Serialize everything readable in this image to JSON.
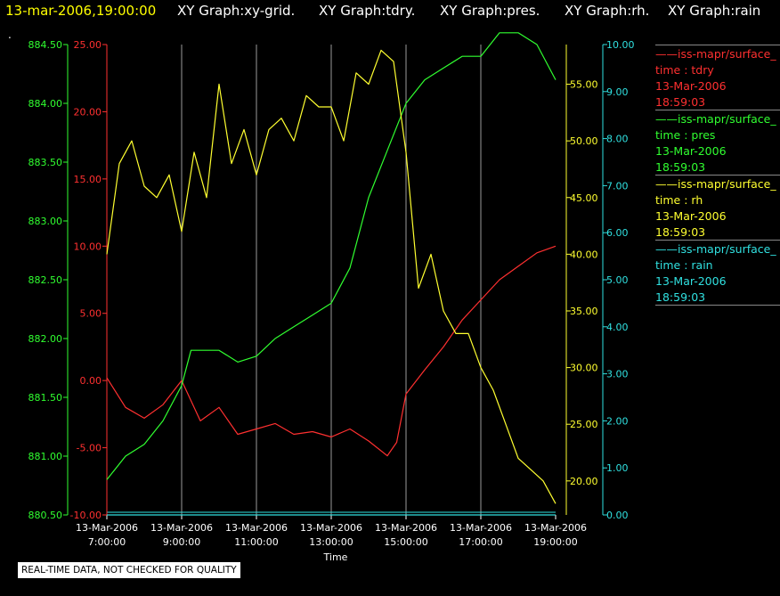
{
  "header": {
    "timestamp": "13-mar-2006,19:00:00",
    "graphs": [
      "XY Graph:xy-grid.",
      "XY Graph:tdry.",
      "XY Graph:pres.",
      "XY Graph:rh.",
      "XY Graph:rain"
    ],
    "timestamp_color": "#ffff00",
    "graph_color": "#ffffff"
  },
  "stray_mark": ".",
  "legend": [
    {
      "title": "iss-mapr/surface_",
      "field": "time : tdry",
      "date": "13-Mar-2006",
      "time": "18:59:03",
      "color": "#ff3030"
    },
    {
      "title": "iss-mapr/surface_",
      "field": "time : pres",
      "date": "13-Mar-2006",
      "time": "18:59:03",
      "color": "#30ff30"
    },
    {
      "title": "iss-mapr/surface_",
      "field": "time : rh",
      "date": "13-Mar-2006",
      "time": "18:59:03",
      "color": "#ffff30"
    },
    {
      "title": "iss-mapr/surface_",
      "field": "time : rain",
      "date": "13-Mar-2006",
      "time": "18:59:03",
      "color": "#30e0e0"
    }
  ],
  "quality_note": "REAL-TIME DATA, NOT CHECKED FOR QUALITY",
  "chart_data": {
    "type": "line",
    "xlabel": "Time",
    "x_ticks": [
      {
        "t": 7,
        "date": "13-Mar-2006",
        "time": "7:00:00"
      },
      {
        "t": 9,
        "date": "13-Mar-2006",
        "time": "9:00:00"
      },
      {
        "t": 11,
        "date": "13-Mar-2006",
        "time": "11:00:00"
      },
      {
        "t": 13,
        "date": "13-Mar-2006",
        "time": "13:00:00"
      },
      {
        "t": 15,
        "date": "13-Mar-2006",
        "time": "15:00:00"
      },
      {
        "t": 17,
        "date": "13-Mar-2006",
        "time": "17:00:00"
      },
      {
        "t": 19,
        "date": "13-Mar-2006",
        "time": "19:00:00"
      }
    ],
    "xlim": [
      "13-Mar-2006 7:00:00",
      "13-Mar-2006 19:00:00"
    ],
    "grid": "vertical lines at tick times",
    "axes": {
      "tdry": {
        "side": "left-inner",
        "color": "#ff3030",
        "ylim": [
          -10,
          25
        ],
        "ticks": [
          "-10.00",
          "-5.00",
          "0.00",
          "5.00",
          "10.00",
          "15.00",
          "20.00",
          "25.00"
        ]
      },
      "pres": {
        "side": "left-outer",
        "color": "#30ff30",
        "ylim": [
          880.5,
          884.5
        ],
        "ticks": [
          "880.50",
          "881.00",
          "881.50",
          "882.00",
          "882.50",
          "883.00",
          "883.50",
          "884.00",
          "884.50"
        ]
      },
      "rh": {
        "side": "right-inner",
        "color": "#ffff30",
        "ylim": [
          17,
          58.5
        ],
        "ticks": [
          "20.00",
          "25.00",
          "30.00",
          "35.00",
          "40.00",
          "45.00",
          "50.00",
          "55.00"
        ]
      },
      "rain": {
        "side": "right-outer",
        "color": "#30e0e0",
        "ylim": [
          0,
          10
        ],
        "ticks": [
          "0.00",
          "1.00",
          "2.00",
          "3.00",
          "4.00",
          "5.00",
          "6.00",
          "7.00",
          "8.00",
          "9.00",
          "10.00"
        ]
      }
    },
    "series": [
      {
        "name": "tdry",
        "axis": "tdry",
        "color": "#ff3030",
        "x": [
          "07:00",
          "07:30",
          "08:00",
          "08:30",
          "09:00",
          "09:30",
          "10:00",
          "10:30",
          "11:00",
          "11:30",
          "12:00",
          "12:30",
          "13:00",
          "13:30",
          "14:00",
          "14:30",
          "14:45",
          "15:00",
          "15:30",
          "16:00",
          "16:30",
          "17:00",
          "17:30",
          "18:00",
          "18:30",
          "19:00"
        ],
        "y": [
          0.2,
          -2.0,
          -2.8,
          -1.8,
          0,
          -3.0,
          -2.0,
          -4.0,
          -3.6,
          -3.2,
          -4.0,
          -3.8,
          -4.2,
          -3.6,
          -4.5,
          -5.6,
          -4.6,
          -1.0,
          0.8,
          2.5,
          4.5,
          6.0,
          7.5,
          8.5,
          9.5,
          10.0
        ]
      },
      {
        "name": "pres",
        "axis": "pres",
        "color": "#30ff30",
        "x": [
          "07:00",
          "07:30",
          "08:00",
          "08:30",
          "09:00",
          "09:15",
          "09:30",
          "10:00",
          "10:30",
          "11:00",
          "11:30",
          "12:00",
          "12:30",
          "13:00",
          "13:30",
          "14:00",
          "14:30",
          "15:00",
          "15:30",
          "16:00",
          "16:30",
          "17:00",
          "17:30",
          "18:00",
          "18:30",
          "19:00"
        ],
        "y": [
          880.8,
          881.0,
          881.1,
          881.3,
          881.6,
          881.9,
          881.9,
          881.9,
          881.8,
          881.85,
          882.0,
          882.1,
          882.2,
          882.3,
          882.6,
          883.2,
          883.6,
          884.0,
          884.2,
          884.3,
          884.4,
          884.4,
          884.6,
          884.6,
          884.5,
          884.2
        ]
      },
      {
        "name": "rh",
        "axis": "rh",
        "color": "#ffff30",
        "x": [
          "07:00",
          "07:20",
          "07:40",
          "08:00",
          "08:20",
          "08:40",
          "09:00",
          "09:20",
          "09:40",
          "10:00",
          "10:20",
          "10:40",
          "11:00",
          "11:20",
          "11:40",
          "12:00",
          "12:20",
          "12:40",
          "13:00",
          "13:20",
          "13:40",
          "14:00",
          "14:20",
          "14:40",
          "15:00",
          "15:20",
          "15:40",
          "16:00",
          "16:20",
          "16:40",
          "17:00",
          "17:20",
          "17:40",
          "18:00",
          "18:20",
          "18:40",
          "19:00"
        ],
        "y": [
          40,
          48,
          50,
          46,
          45,
          47,
          42,
          49,
          45,
          55,
          48,
          51,
          47,
          51,
          52,
          50,
          54,
          53,
          53,
          50,
          56,
          55,
          58,
          57,
          49,
          37,
          40,
          35,
          33,
          33,
          30,
          28,
          25,
          22,
          21,
          20,
          18
        ]
      },
      {
        "name": "rain",
        "axis": "rain",
        "color": "#30e0e0",
        "x": [
          "07:00",
          "19:00"
        ],
        "y": [
          0,
          0
        ]
      }
    ]
  }
}
